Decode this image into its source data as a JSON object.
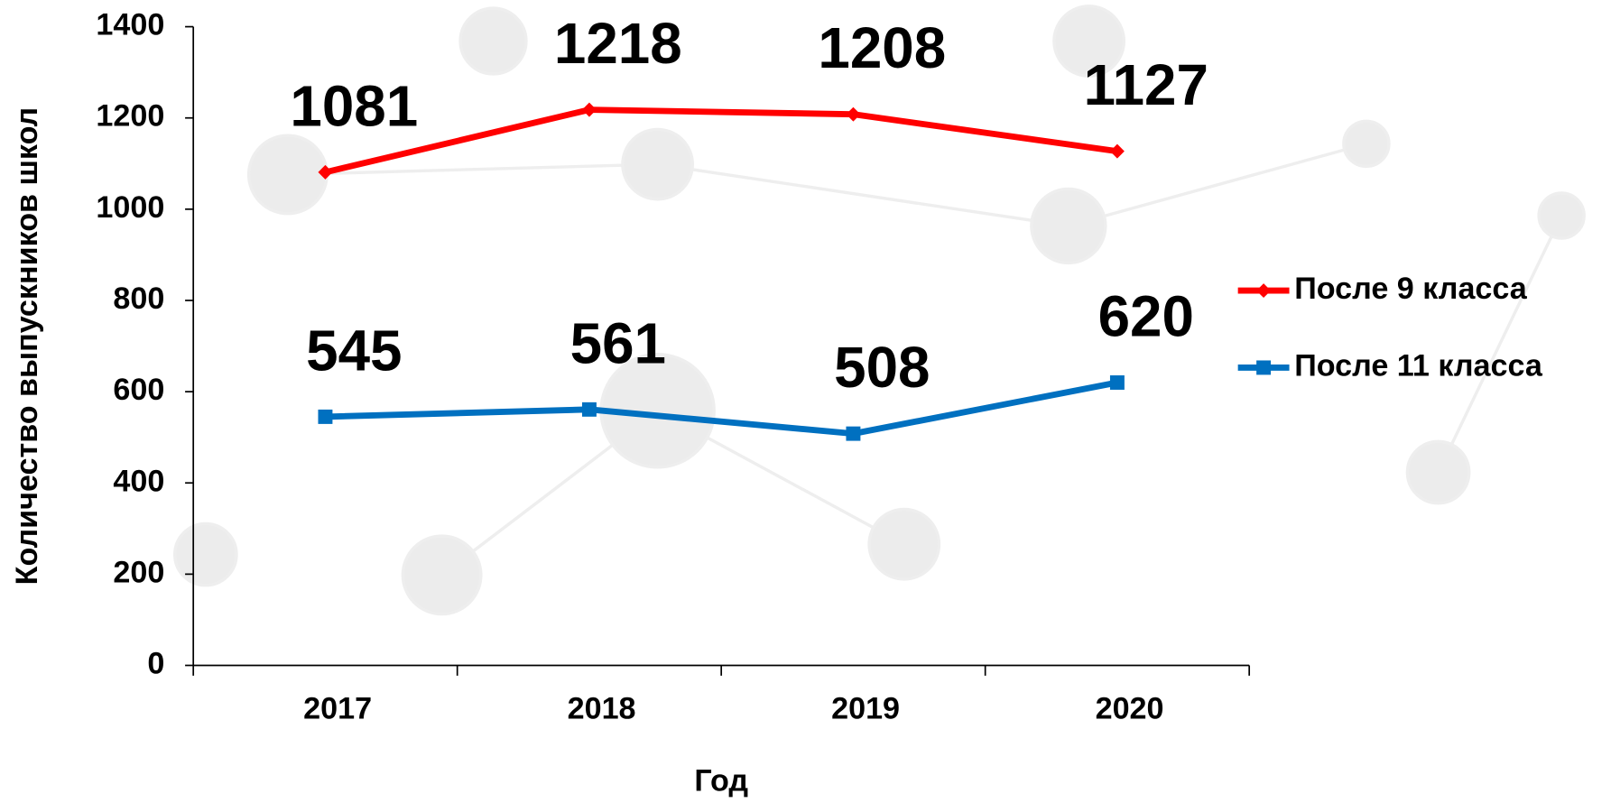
{
  "chart_data": {
    "type": "line",
    "categories": [
      "2017",
      "2018",
      "2019",
      "2020"
    ],
    "series": [
      {
        "name": "После 9 класса",
        "color": "#ff0000",
        "marker": "diamond",
        "values": [
          1081,
          1218,
          1208,
          1127
        ]
      },
      {
        "name": "После 11 класса",
        "color": "#0070c0",
        "marker": "square",
        "values": [
          545,
          561,
          508,
          620
        ]
      }
    ],
    "ylim": [
      0,
      1400
    ],
    "yticks": [
      0,
      200,
      400,
      600,
      800,
      1000,
      1200,
      1400
    ],
    "x_label": "Год",
    "y_label": "Количество выпускников школ",
    "legend": "right",
    "grid": false
  }
}
